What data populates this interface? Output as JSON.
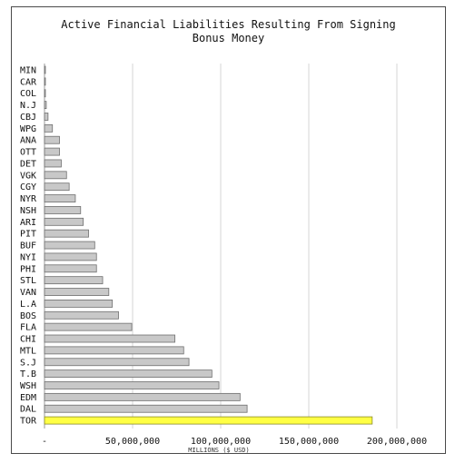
{
  "chart_data": {
    "type": "bar",
    "orientation": "horizontal",
    "title_line1": "Active Financial Liabilities Resulting From Signing",
    "title_line2": "Bonus Money",
    "xlabel": "MILLIONS ($ USD)",
    "ylabel": "",
    "xlim": [
      0,
      200000000
    ],
    "xticks": [
      {
        "value": 0,
        "label": "-"
      },
      {
        "value": 50000000,
        "label": "50,000,000"
      },
      {
        "value": 100000000,
        "label": "100,000,000"
      },
      {
        "value": 150000000,
        "label": "150,000,000"
      },
      {
        "value": 200000000,
        "label": "200,000,000"
      }
    ],
    "grid": "vertical",
    "categories": [
      "MIN",
      "CAR",
      "COL",
      "N.J",
      "CBJ",
      "WPG",
      "ANA",
      "OTT",
      "DET",
      "VGK",
      "CGY",
      "NYR",
      "NSH",
      "ARI",
      "PIT",
      "BUF",
      "NYI",
      "PHI",
      "STL",
      "VAN",
      "L.A",
      "BOS",
      "FLA",
      "CHI",
      "MTL",
      "S.J",
      "T.B",
      "WSH",
      "EDM",
      "DAL",
      "TOR"
    ],
    "values": [
      500000,
      500000,
      500000,
      1000000,
      2000000,
      4500000,
      8500000,
      8500000,
      9500000,
      12500000,
      14000000,
      17500000,
      20500000,
      22000000,
      25000000,
      28500000,
      29500000,
      29500000,
      33000000,
      36500000,
      38500000,
      42000000,
      49500000,
      74000000,
      79000000,
      82000000,
      95000000,
      99000000,
      111000000,
      115000000,
      186000000
    ],
    "highlight_category": "TOR",
    "colors": {
      "bar": "#c8c8c8",
      "bar_edge": "#6e6e6e",
      "highlight": "#ffff44",
      "highlight_edge": "#8a8a2a",
      "grid": "#d4d4d4"
    }
  }
}
